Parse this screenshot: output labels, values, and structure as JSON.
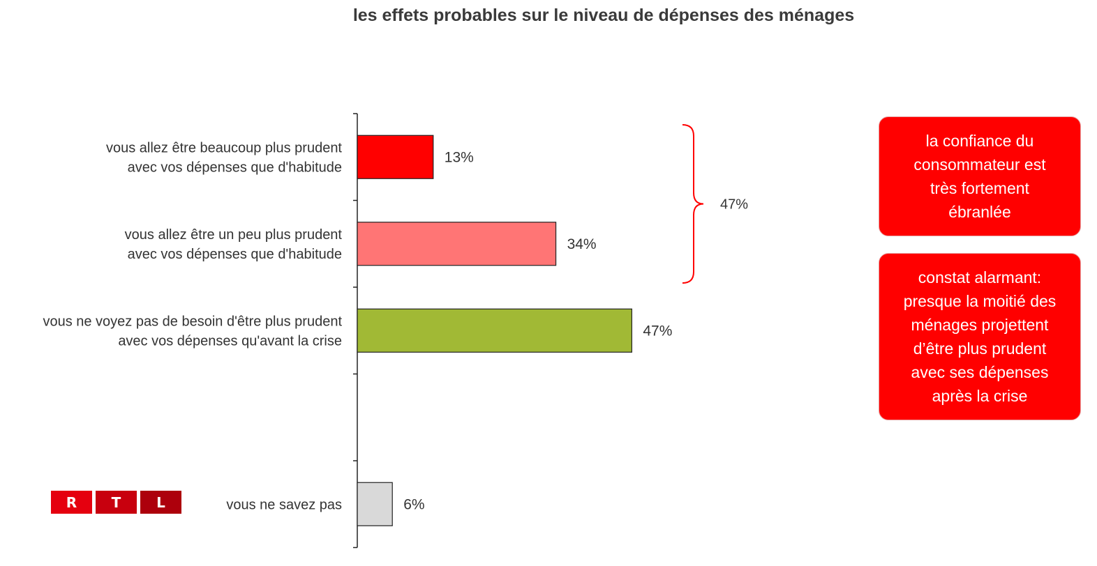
{
  "chart_data": {
    "type": "bar",
    "orientation": "horizontal",
    "title": "les effets probables sur le niveau de dépenses des ménages",
    "categories": [
      "vous allez être beaucoup plus prudent\navec vos dépenses que d'habitude",
      "vous allez être un peu plus prudent\navec vos dépenses que d'habitude",
      "vous ne voyez pas de besoin d'être plus prudent\navec vos dépenses qu'avant la crise",
      "",
      "vous ne savez pas"
    ],
    "values": [
      13,
      34,
      47,
      null,
      6
    ],
    "value_labels": [
      "13%",
      "34%",
      "47%",
      "",
      "6%"
    ],
    "colors": [
      "#ff0000",
      "#ff7575",
      "#a1b935",
      null,
      "#d9d9d9"
    ],
    "xlim": [
      0,
      100
    ],
    "grid": false,
    "brace": {
      "covers": [
        0,
        1
      ],
      "label": "47%",
      "color": "#ff0000"
    }
  },
  "callouts": [
    "la confiance du\nconsommateur est\ntrès fortement\nébranlée",
    "constat alarmant:\npresque la moitié des\nménages projettent\nd’être plus prudent\navec ses dépenses\naprès la crise"
  ],
  "logo": {
    "letters": [
      "R",
      "T",
      "L"
    ],
    "colors": [
      "#e5000f",
      "#c8000e",
      "#ad000c"
    ]
  }
}
